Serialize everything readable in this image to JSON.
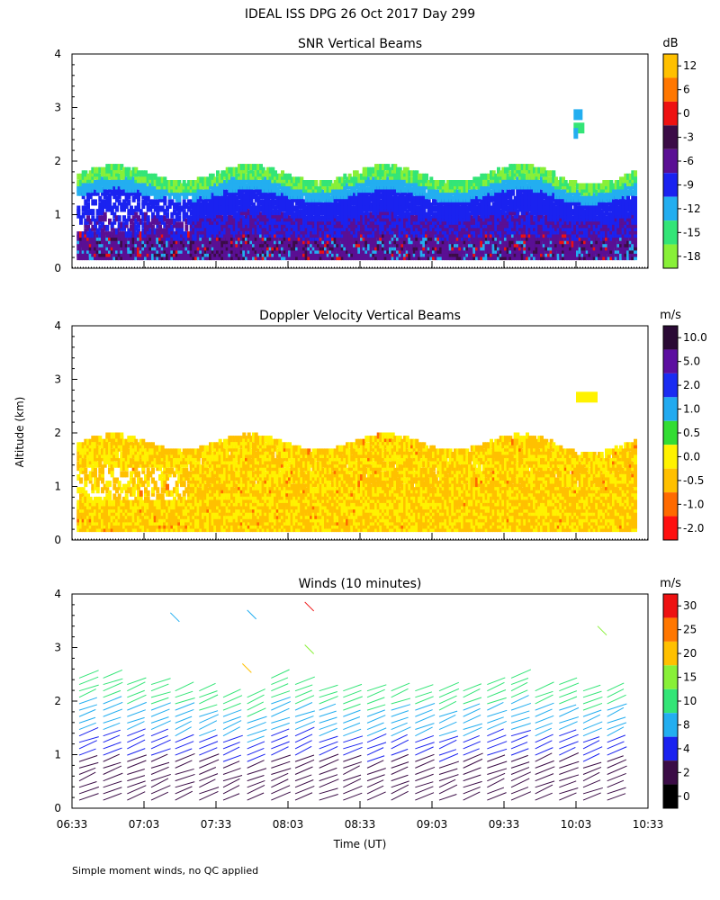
{
  "figure": {
    "title": "IDEAL ISS DPG  26 Oct 2017 Day 299",
    "ylabel": "Altitude (km)",
    "xlabel": "Time (UT)",
    "footnote": "Simple moment winds, no QC applied"
  },
  "chart_data": [
    {
      "type": "heatmap",
      "title": "SNR Vertical Beams",
      "units": "dB",
      "ylim": [
        0,
        4
      ],
      "yticks": [
        0,
        1,
        2,
        3,
        4
      ],
      "xlim_minutes": [
        393,
        633
      ],
      "x_tick_labels": [
        "06:33",
        "07:03",
        "07:33",
        "08:03",
        "08:33",
        "09:03",
        "09:33",
        "10:03",
        "10:33"
      ],
      "colorbar": {
        "labels": [
          "12",
          "6",
          "0",
          "-3",
          "-6",
          "-9",
          "-12",
          "-15",
          "-18"
        ],
        "colors": [
          "#ffc000",
          "#ff7700",
          "#ee1111",
          "#3b0c46",
          "#5a0f94",
          "#1a22f0",
          "#23aef0",
          "#33e577",
          "#88f038"
        ]
      },
      "layer_top_km": 1.7,
      "data_bottom_km": 0.15
    },
    {
      "type": "heatmap",
      "title": "Doppler Velocity Vertical Beams",
      "units": "m/s",
      "ylim": [
        0,
        4
      ],
      "yticks": [
        0,
        1,
        2,
        3,
        4
      ],
      "xlim_minutes": [
        393,
        633
      ],
      "x_tick_labels": [
        "06:33",
        "07:03",
        "07:33",
        "08:03",
        "08:33",
        "09:03",
        "09:33",
        "10:03",
        "10:33"
      ],
      "colorbar": {
        "labels": [
          "10.0",
          "5.0",
          "2.0",
          "1.0",
          "0.5",
          "0.0",
          "-0.5",
          "-1.0",
          "-2.0"
        ],
        "colors": [
          "#2a0a35",
          "#5c0ea0",
          "#1a2cf2",
          "#22aaf0",
          "#33dd33",
          "#fff200",
          "#ffc000",
          "#ff6a00",
          "#ff1010"
        ]
      },
      "layer_top_km": 1.75,
      "data_bottom_km": 0.15
    },
    {
      "type": "wind_barbs",
      "title": "Winds (10 minutes)",
      "units": "m/s",
      "ylim": [
        0,
        4
      ],
      "yticks": [
        0,
        1,
        2,
        3,
        4
      ],
      "xlim_minutes": [
        393,
        633
      ],
      "x_tick_labels": [
        "06:33",
        "07:03",
        "07:33",
        "08:03",
        "08:33",
        "09:03",
        "09:33",
        "10:03",
        "10:33"
      ],
      "colorbar": {
        "labels": [
          "30",
          "25",
          "20",
          "15",
          "10",
          "8",
          "4",
          "2",
          "0"
        ],
        "colors": [
          "#ee1111",
          "#ff7700",
          "#ffc000",
          "#88f038",
          "#33e577",
          "#23aef0",
          "#1a22f0",
          "#3b0c46",
          "#000000"
        ]
      },
      "profile_times_minutes": [
        396,
        406,
        416,
        426,
        436,
        446,
        456,
        466,
        476,
        486,
        496,
        506,
        516,
        526,
        536,
        546,
        556,
        566,
        576,
        586,
        596,
        606,
        616
      ],
      "profile_tops_km": [
        2.45,
        2.45,
        2.4,
        2.4,
        2.3,
        2.25,
        2.15,
        2.1,
        2.45,
        2.35,
        2.3,
        2.25,
        2.2,
        2.3,
        2.3,
        2.2,
        2.3,
        2.35,
        2.45,
        2.3,
        2.35,
        2.2,
        2.3
      ]
    }
  ]
}
